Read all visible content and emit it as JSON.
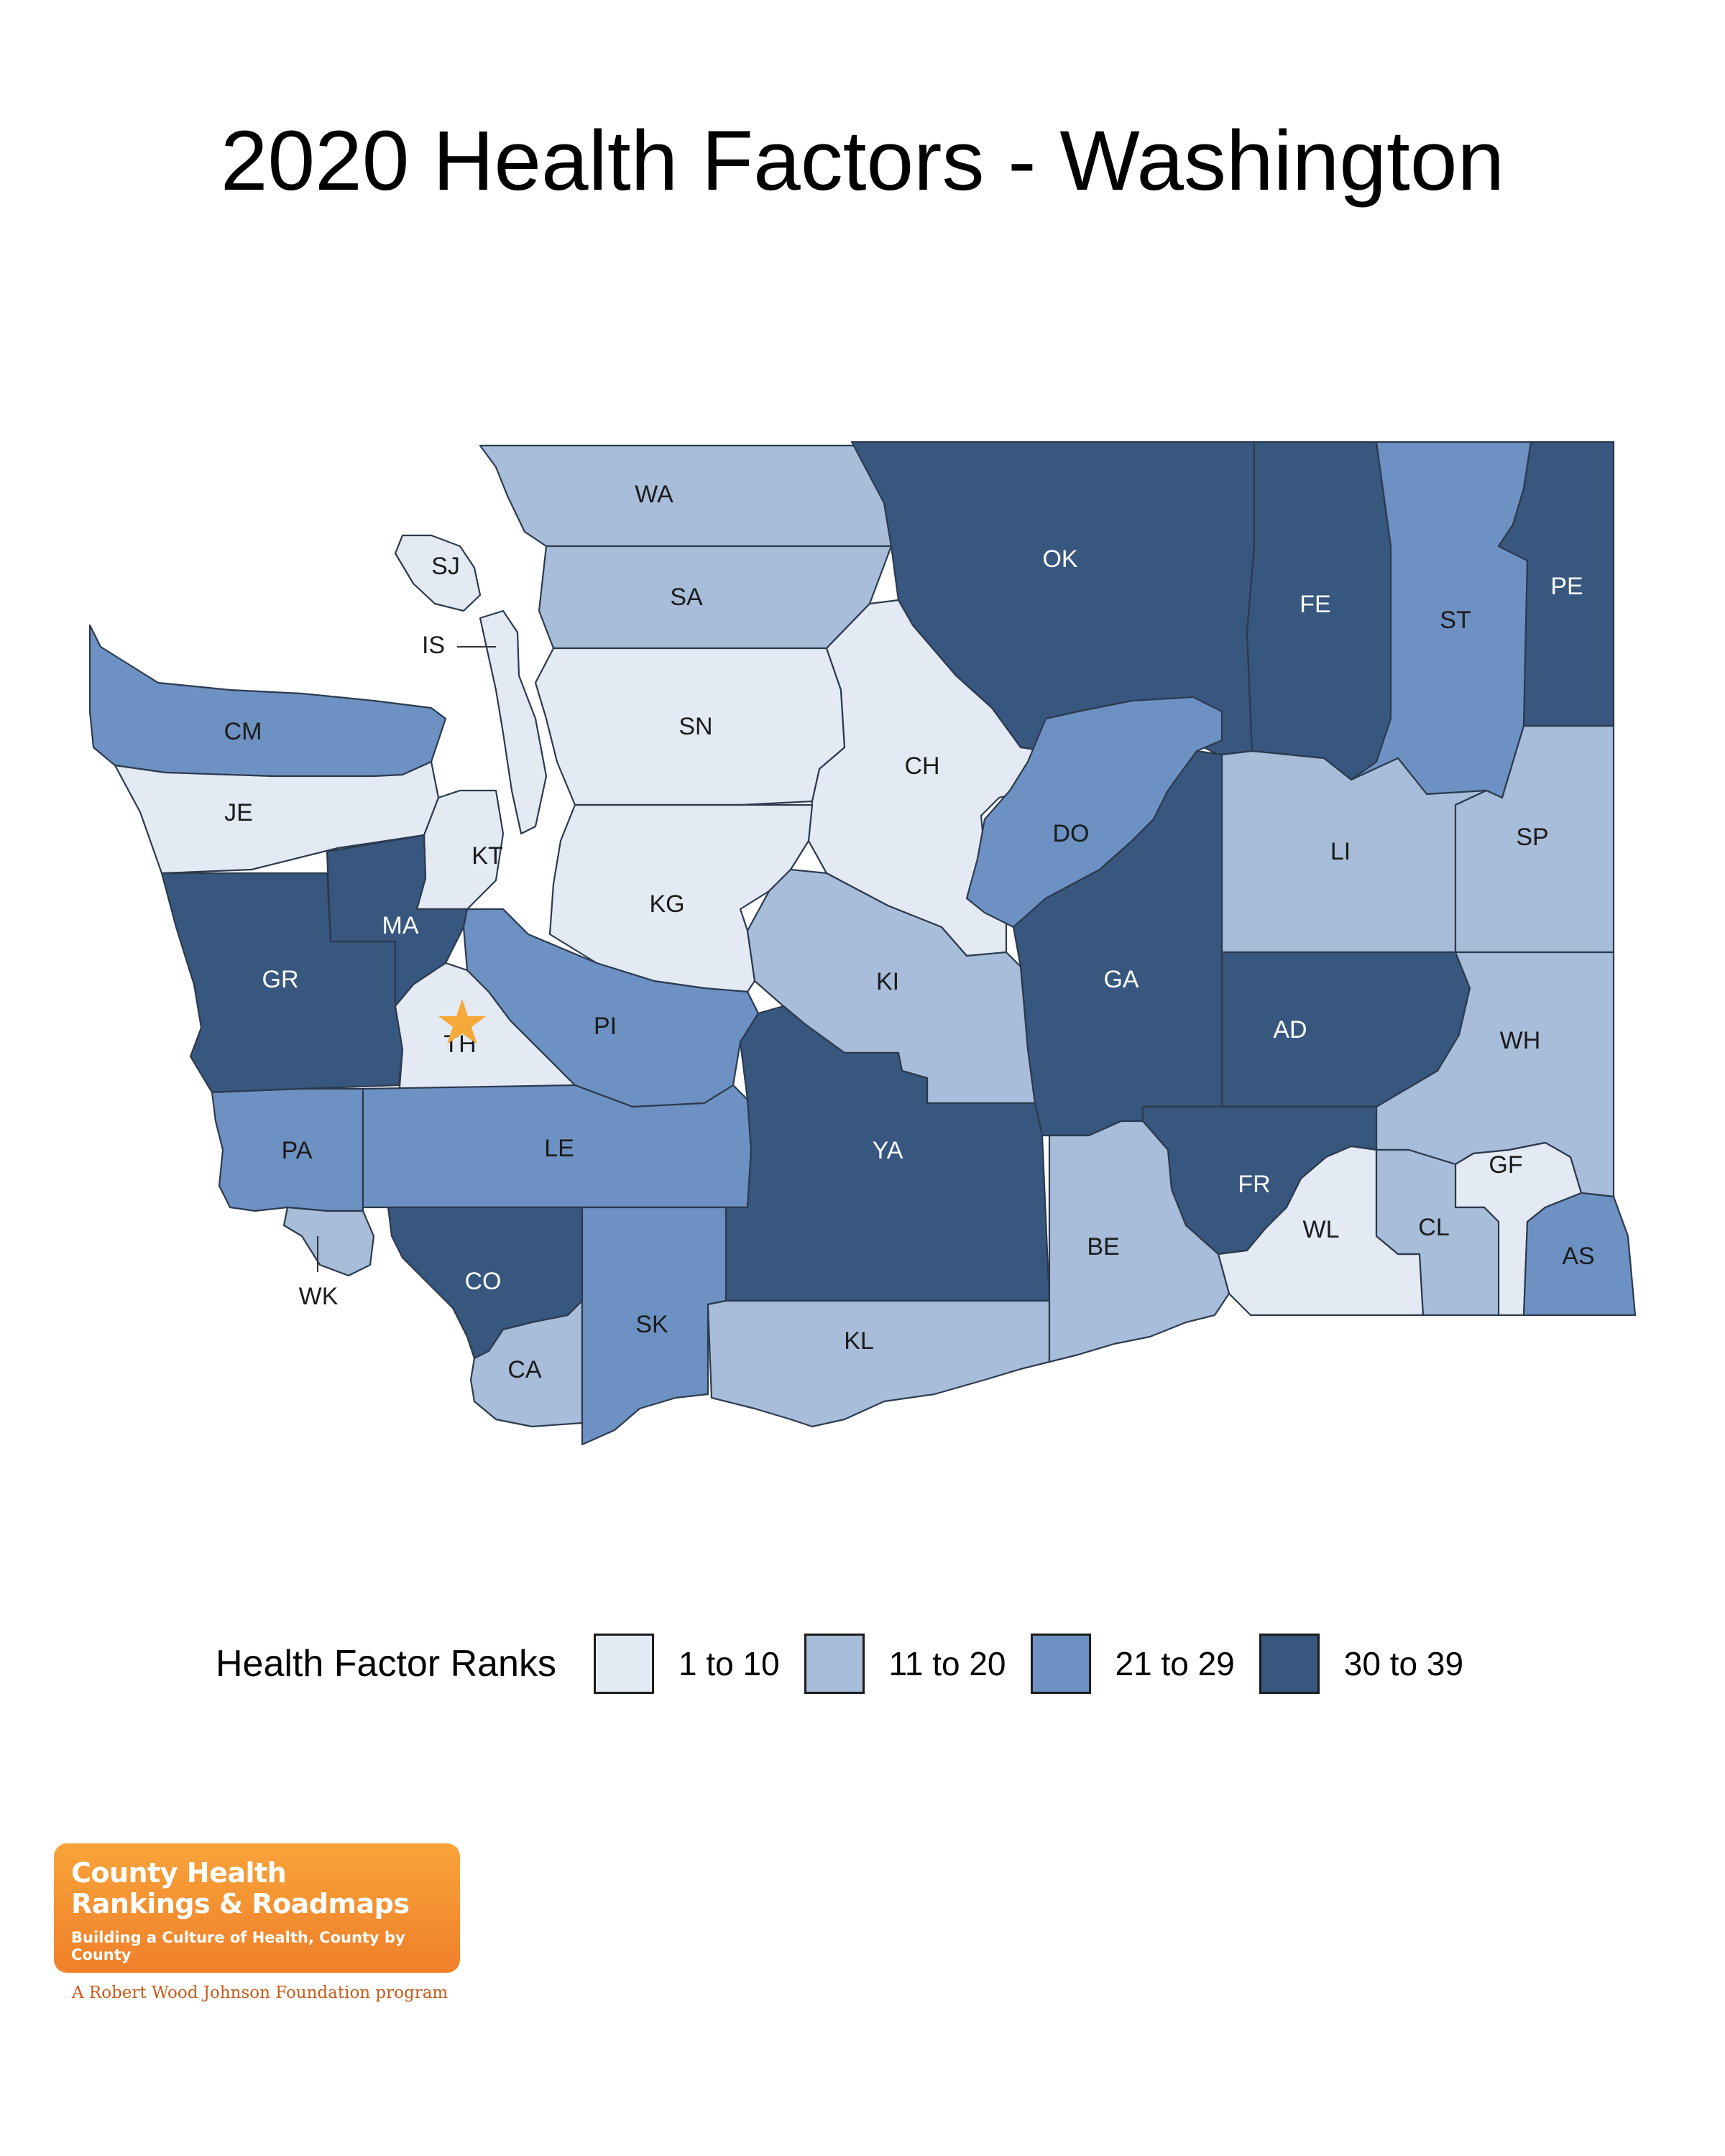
{
  "title": "2020 Health Factors - Washington",
  "legend": {
    "title": "Health Factor Ranks",
    "items": [
      {
        "label": "1 to 10",
        "color": "#e3eaf4"
      },
      {
        "label": "11 to 20",
        "color": "#a8bdd9"
      },
      {
        "label": "21 to 29",
        "color": "#6d91c2"
      },
      {
        "label": "30 to 39",
        "color": "#37577f"
      }
    ]
  },
  "counties": [
    {
      "code": "WA",
      "rank_group": 1
    },
    {
      "code": "SA",
      "rank_group": 1
    },
    {
      "code": "OK",
      "rank_group": 3
    },
    {
      "code": "FE",
      "rank_group": 3
    },
    {
      "code": "ST",
      "rank_group": 2
    },
    {
      "code": "PE",
      "rank_group": 3
    },
    {
      "code": "SJ",
      "rank_group": 0
    },
    {
      "code": "IS",
      "rank_group": 0
    },
    {
      "code": "CM",
      "rank_group": 2
    },
    {
      "code": "JE",
      "rank_group": 0
    },
    {
      "code": "SN",
      "rank_group": 0
    },
    {
      "code": "CH",
      "rank_group": 0
    },
    {
      "code": "KT",
      "rank_group": 0
    },
    {
      "code": "KG",
      "rank_group": 0
    },
    {
      "code": "DO",
      "rank_group": 2
    },
    {
      "code": "LI",
      "rank_group": 1
    },
    {
      "code": "SP",
      "rank_group": 1
    },
    {
      "code": "GR",
      "rank_group": 3
    },
    {
      "code": "MA",
      "rank_group": 3
    },
    {
      "code": "TH",
      "rank_group": 0
    },
    {
      "code": "PI",
      "rank_group": 2
    },
    {
      "code": "KI",
      "rank_group": 1
    },
    {
      "code": "GA",
      "rank_group": 3
    },
    {
      "code": "AD",
      "rank_group": 3
    },
    {
      "code": "WH",
      "rank_group": 1
    },
    {
      "code": "PA",
      "rank_group": 2
    },
    {
      "code": "LE",
      "rank_group": 2
    },
    {
      "code": "YA",
      "rank_group": 3
    },
    {
      "code": "FR",
      "rank_group": 3
    },
    {
      "code": "GF",
      "rank_group": 0
    },
    {
      "code": "WL",
      "rank_group": 0
    },
    {
      "code": "CL",
      "rank_group": 1
    },
    {
      "code": "AS",
      "rank_group": 2
    },
    {
      "code": "WK",
      "rank_group": 1
    },
    {
      "code": "CO",
      "rank_group": 3
    },
    {
      "code": "CA",
      "rank_group": 1
    },
    {
      "code": "SK",
      "rank_group": 2
    },
    {
      "code": "KL",
      "rank_group": 1
    },
    {
      "code": "BE",
      "rank_group": 1
    }
  ],
  "capital_marker": {
    "county": "TH",
    "icon": "star-icon",
    "color": "#f5a93a"
  },
  "logo": {
    "line1": "County Health",
    "line2": "Rankings & Roadmaps",
    "tagline": "Building a Culture of Health, County by County",
    "footer": "A Robert Wood Johnson Foundation program"
  }
}
